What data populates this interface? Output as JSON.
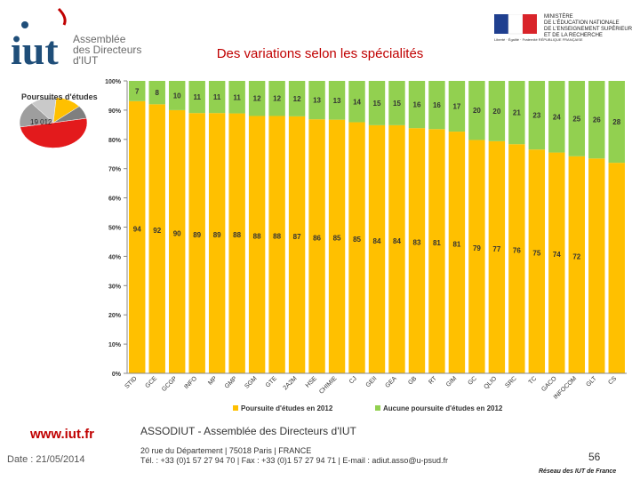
{
  "header": {
    "logo_text": "iut",
    "logo_subtitle_lines": [
      "Assemblée",
      "des Directeurs",
      "d'IUT"
    ],
    "ministry_lines": [
      "MINISTÈRE",
      "DE L'ÉDUCATION NATIONALE",
      "DE L'ENSEIGNEMENT SUPÉRIEUR",
      "ET DE LA RECHERCHE"
    ],
    "flag_caption": "Liberté · Égalité · Fraternité RÉPUBLIQUE FRANÇAISE",
    "title": "Des variations selon les spécialités"
  },
  "inset": {
    "title": "Poursuites d'études",
    "label": "19 012"
  },
  "chart_data": {
    "type": "bar",
    "stacked": true,
    "categories": [
      "STID",
      "GCE",
      "GCGP",
      "INFO",
      "MP",
      "GMP",
      "SGM",
      "GTE",
      "2A2M",
      "HSE",
      "CHIMIE",
      "CJ",
      "GEII",
      "GEA",
      "GB",
      "RT",
      "GIM",
      "GC",
      "QLIO",
      "SRC",
      "TC",
      "GACO",
      "INFOCOM",
      "GLT",
      "CS"
    ],
    "series": [
      {
        "name": "Poursuite d'études en 2012",
        "color": "#ffc000",
        "values": [
          94,
          92,
          90,
          89,
          89,
          88,
          88,
          88,
          87,
          86,
          85,
          85,
          84,
          84,
          83,
          81,
          81,
          79,
          77,
          76,
          75,
          74,
          72,
          72,
          72
        ]
      },
      {
        "name": "Aucune poursuite d'études en 2012",
        "color": "#92d050",
        "values": [
          7,
          8,
          10,
          11,
          11,
          11,
          12,
          12,
          12,
          13,
          13,
          14,
          15,
          15,
          16,
          16,
          17,
          20,
          20,
          21,
          23,
          24,
          25,
          26,
          28
        ]
      }
    ],
    "bar_labels_bottom": [
      "94",
      "92",
      "90",
      "89",
      "89",
      "88",
      "88",
      "88",
      "87",
      "86",
      "85",
      "85",
      "84",
      "84",
      "83",
      "81",
      "81",
      "79",
      "77",
      "76",
      "75",
      "74",
      "72",
      "",
      ""
    ],
    "bar_labels_top": [
      "7",
      "8",
      "10",
      "11",
      "11",
      "11",
      "12",
      "12",
      "12",
      "13",
      "13",
      "14",
      "15",
      "15",
      "16",
      "16",
      "17",
      "20",
      "20",
      "21",
      "23",
      "24",
      "25",
      "26",
      "28"
    ],
    "ylim": [
      0,
      100
    ],
    "yticks": [
      "0%",
      "10%",
      "20%",
      "30%",
      "40%",
      "50%",
      "60%",
      "70%",
      "80%",
      "90%",
      "100%"
    ],
    "legend": [
      "Poursuite d'études en 2012",
      "Aucune poursuite d'études en 2012"
    ]
  },
  "footer": {
    "url": "www.iut.fr",
    "date": "Date : 21/05/2014",
    "org": "ASSODIUT - Assemblée des Directeurs d'IUT",
    "address_line1": "20 rue du Département | 75018 Paris | FRANCE",
    "address_line2": "Tél. : +33 (0)1 57 27 94 70 | Fax : +33 (0)1 57 27 94 71 | E-mail : adiut.asso@u-psud.fr",
    "page_number": "56",
    "network": "Réseau des IUT de France"
  }
}
